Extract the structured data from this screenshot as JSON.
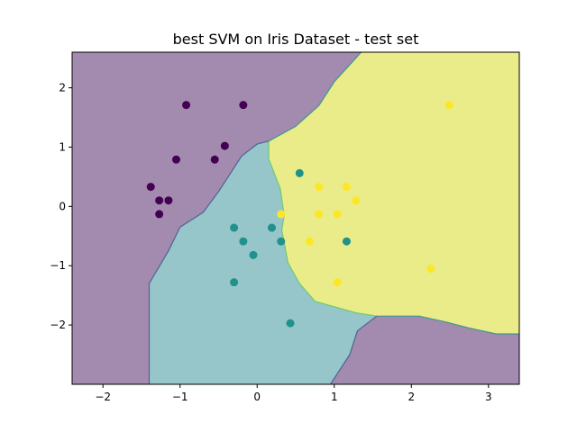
{
  "chart_data": {
    "type": "scatter",
    "title": "best SVM on Iris Dataset - test set",
    "xlabel": "",
    "ylabel": "",
    "xlim": [
      -2.4,
      3.4
    ],
    "ylim": [
      -3.0,
      2.6
    ],
    "xticks": [
      -2,
      -1,
      0,
      1,
      2,
      3
    ],
    "yticks": [
      -2,
      -1,
      0,
      1,
      2
    ],
    "xtick_labels": [
      "−2",
      "−1",
      "0",
      "1",
      "2",
      "3"
    ],
    "ytick_labels": [
      "−2",
      "−1",
      "0",
      "1",
      "2"
    ],
    "grid": false,
    "legend": "none",
    "region_colors": {
      "class_0": "#a38aaf",
      "class_1": "#96c5ca",
      "class_2": "#eaec8a"
    },
    "boundary_colors": [
      "#3b528b",
      "#21918c",
      "#5ec962"
    ],
    "decision_regions": {
      "class_0_vs_1_boundary": [
        [
          -1.4,
          -3.0
        ],
        [
          -1.4,
          -1.3
        ],
        [
          -1.15,
          -0.75
        ],
        [
          -1.0,
          -0.35
        ],
        [
          -0.7,
          -0.1
        ],
        [
          -0.5,
          0.25
        ],
        [
          -0.35,
          0.55
        ],
        [
          -0.2,
          0.85
        ],
        [
          0.0,
          1.05
        ],
        [
          0.15,
          1.1
        ]
      ],
      "class_1_vs_2_boundary": [
        [
          0.15,
          1.1
        ],
        [
          0.15,
          0.8
        ],
        [
          0.3,
          0.3
        ],
        [
          0.35,
          -0.15
        ],
        [
          0.32,
          -0.4
        ],
        [
          0.35,
          -0.6
        ],
        [
          0.4,
          -0.95
        ],
        [
          0.55,
          -1.3
        ],
        [
          0.75,
          -1.6
        ],
        [
          1.3,
          -1.8
        ],
        [
          1.55,
          -1.85
        ]
      ],
      "class_0_vs_2_boundary": [
        [
          0.15,
          1.1
        ],
        [
          0.5,
          1.35
        ],
        [
          0.8,
          1.7
        ],
        [
          1.0,
          2.1
        ],
        [
          1.35,
          2.6
        ]
      ],
      "class_2_vs_0_lower_boundary": [
        [
          1.55,
          -1.85
        ],
        [
          2.1,
          -1.85
        ],
        [
          2.45,
          -1.95
        ],
        [
          2.75,
          -2.05
        ],
        [
          3.1,
          -2.15
        ],
        [
          3.4,
          -2.15
        ]
      ],
      "class_1_vs_0_lower_boundary": [
        [
          1.55,
          -1.85
        ],
        [
          1.3,
          -2.1
        ],
        [
          1.2,
          -2.5
        ],
        [
          1.05,
          -2.8
        ],
        [
          0.95,
          -3.0
        ]
      ]
    },
    "series": [
      {
        "color": "#440154",
        "points": [
          [
            -0.92,
            1.71
          ],
          [
            -0.18,
            1.71
          ],
          [
            -0.42,
            1.02
          ],
          [
            -1.05,
            0.79
          ],
          [
            -0.55,
            0.79
          ],
          [
            -1.38,
            0.33
          ],
          [
            -1.27,
            0.1
          ],
          [
            -1.15,
            0.1
          ],
          [
            -1.27,
            -0.13
          ]
        ]
      },
      {
        "color": "#21918c",
        "points": [
          [
            0.55,
            0.56
          ],
          [
            -0.3,
            -0.36
          ],
          [
            0.19,
            -0.36
          ],
          [
            -0.18,
            -0.59
          ],
          [
            0.31,
            -0.59
          ],
          [
            1.16,
            -0.59
          ],
          [
            -0.05,
            -0.82
          ],
          [
            -0.3,
            -1.28
          ],
          [
            0.43,
            -1.97
          ]
        ]
      },
      {
        "color": "#fde725",
        "points": [
          [
            2.49,
            1.71
          ],
          [
            0.8,
            0.33
          ],
          [
            1.16,
            0.33
          ],
          [
            1.28,
            0.1
          ],
          [
            0.31,
            -0.13
          ],
          [
            0.8,
            -0.13
          ],
          [
            1.04,
            -0.13
          ],
          [
            0.68,
            -0.59
          ],
          [
            2.25,
            -1.05
          ],
          [
            1.04,
            -1.28
          ]
        ]
      }
    ]
  }
}
